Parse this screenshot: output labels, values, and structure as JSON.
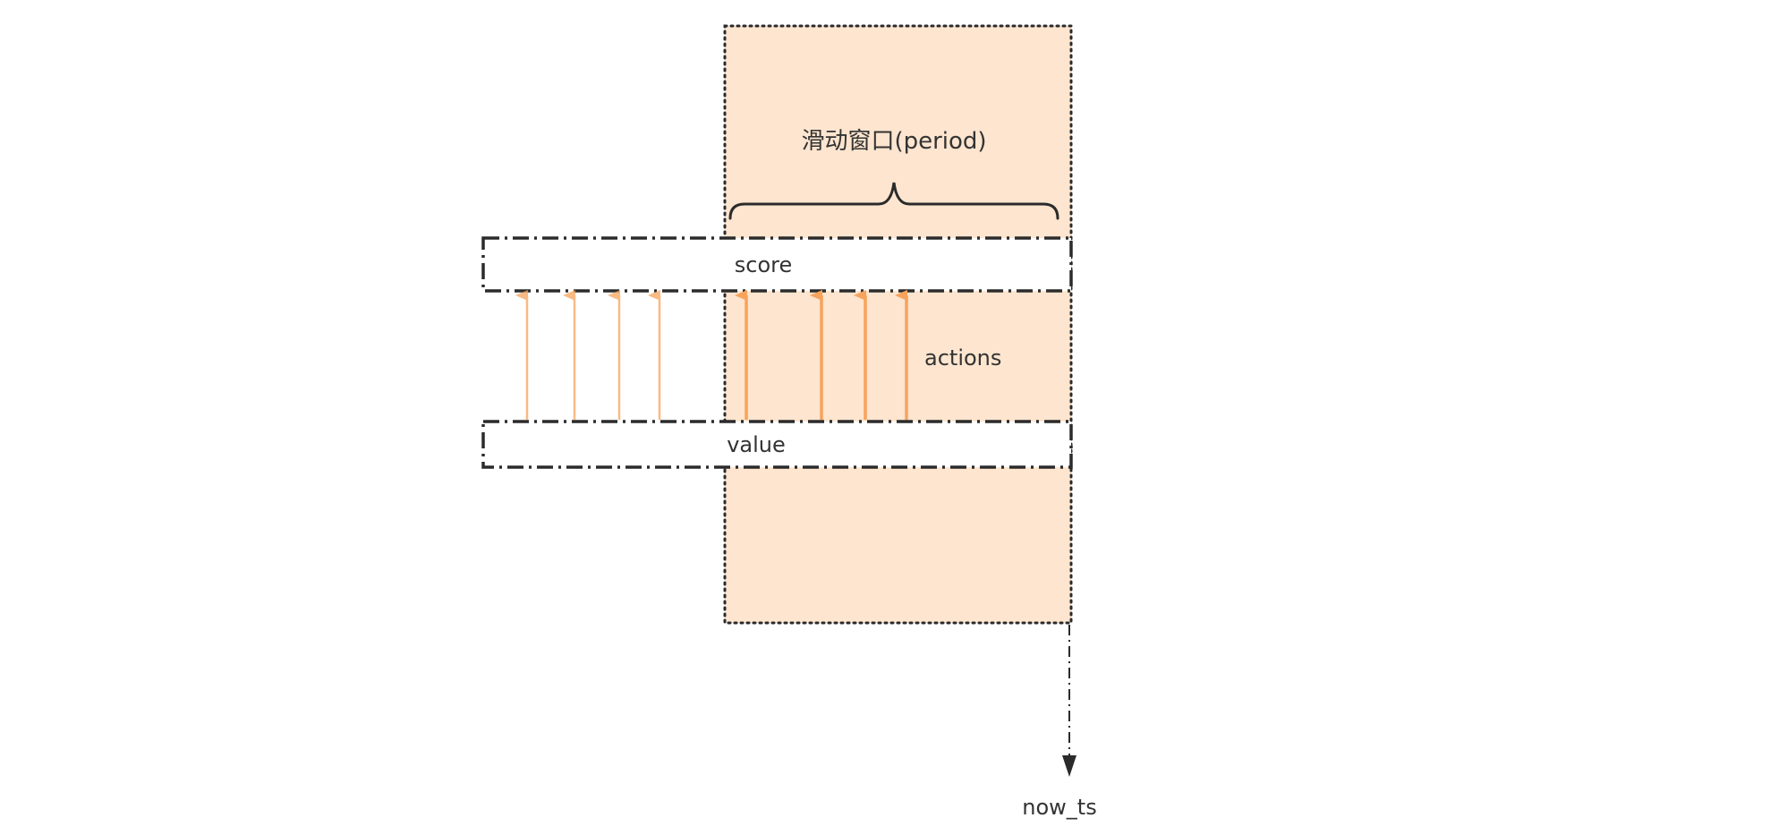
{
  "diagram": {
    "window_label": "滑动窗口(period)",
    "score_label": "score",
    "value_label": "value",
    "actions_label": "actions",
    "now_label": "now_ts"
  },
  "colors": {
    "window_fill": "#fde5cf",
    "arrow_orange": "#f7a35c",
    "line_dark": "#2b2b2b"
  },
  "arrows": {
    "outside_window_count": 4,
    "inside_window_count": 4
  }
}
